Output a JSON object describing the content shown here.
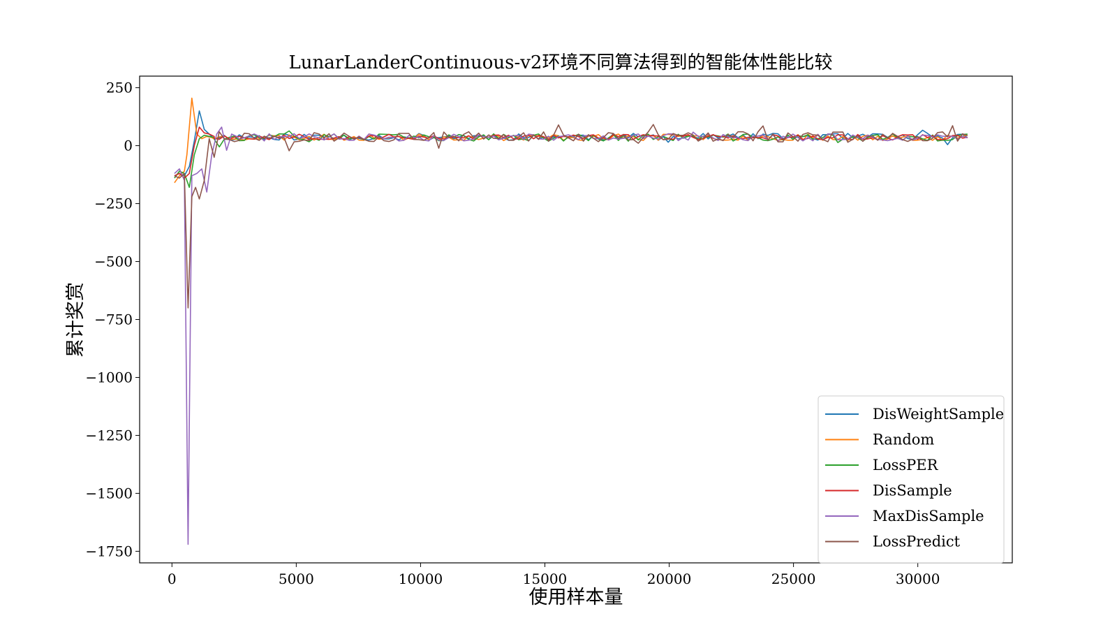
{
  "chart_data": {
    "type": "line",
    "title": "LunarLanderContinuous-v2环境不同算法得到的智能体性能比较",
    "xlabel": "使用样本量",
    "ylabel": "累计奖赏",
    "xlim": [
      -1300,
      33800
    ],
    "ylim": [
      -1800,
      300
    ],
    "xticks": [
      0,
      5000,
      10000,
      15000,
      20000,
      25000,
      30000
    ],
    "xtick_labels": [
      "0",
      "5000",
      "10000",
      "15000",
      "20000",
      "25000",
      "30000"
    ],
    "yticks": [
      250,
      0,
      -250,
      -500,
      -750,
      -1000,
      -1250,
      -1500,
      -1750
    ],
    "ytick_labels": [
      "250",
      "0",
      "−250",
      "−500",
      "−750",
      "−1000",
      "−1250",
      "−1500",
      "−1750"
    ],
    "grid": false,
    "legend_position": "lower-right",
    "x_range": [
      100,
      32000
    ],
    "samples": 160,
    "series": [
      {
        "name": "DisWeightSample",
        "color": "#1f77b4",
        "head": [
          [
            100,
            -130
          ],
          [
            300,
            -120
          ],
          [
            500,
            -130
          ],
          [
            700,
            -90
          ],
          [
            900,
            20
          ],
          [
            1100,
            150
          ],
          [
            1300,
            70
          ],
          [
            1500,
            50
          ],
          [
            1700,
            30
          ]
        ],
        "baseline": 38,
        "noise": 15,
        "seed": 11
      },
      {
        "name": "Random",
        "color": "#ff7f0e",
        "head": [
          [
            100,
            -160
          ],
          [
            300,
            -130
          ],
          [
            500,
            -110
          ],
          [
            600,
            -40
          ],
          [
            800,
            205
          ],
          [
            1000,
            50
          ],
          [
            1200,
            30
          ],
          [
            1400,
            40
          ],
          [
            1600,
            35
          ]
        ],
        "baseline": 36,
        "noise": 14,
        "seed": 23
      },
      {
        "name": "LossPER",
        "color": "#2ca02c",
        "head": [
          [
            100,
            -140
          ],
          [
            300,
            -110
          ],
          [
            500,
            -120
          ],
          [
            700,
            -180
          ],
          [
            900,
            -40
          ],
          [
            1100,
            30
          ],
          [
            1300,
            45
          ],
          [
            1500,
            40
          ],
          [
            1700,
            35
          ]
        ],
        "baseline": 35,
        "noise": 16,
        "seed": 37
      },
      {
        "name": "DisSample",
        "color": "#d62728",
        "head": [
          [
            100,
            -130
          ],
          [
            300,
            -120
          ],
          [
            500,
            -140
          ],
          [
            700,
            -120
          ],
          [
            900,
            0
          ],
          [
            1100,
            80
          ],
          [
            1300,
            55
          ],
          [
            1500,
            50
          ],
          [
            1700,
            40
          ]
        ],
        "baseline": 37,
        "noise": 12,
        "seed": 53
      },
      {
        "name": "MaxDisSample",
        "color": "#9467bd",
        "head": [
          [
            100,
            -120
          ],
          [
            300,
            -100
          ],
          [
            500,
            -150
          ],
          [
            650,
            -1720
          ],
          [
            800,
            -130
          ],
          [
            1000,
            -120
          ],
          [
            1200,
            -100
          ],
          [
            1400,
            -200
          ],
          [
            1600,
            -40
          ],
          [
            1800,
            50
          ],
          [
            2000,
            80
          ],
          [
            2200,
            -20
          ],
          [
            2400,
            50
          ],
          [
            2600,
            40
          ]
        ],
        "baseline": 36,
        "noise": 16,
        "seed": 71
      },
      {
        "name": "LossPredict",
        "color": "#8c564b",
        "head": [
          [
            100,
            -130
          ],
          [
            300,
            -140
          ],
          [
            500,
            -120
          ],
          [
            650,
            -700
          ],
          [
            800,
            -220
          ],
          [
            950,
            -180
          ],
          [
            1100,
            -230
          ],
          [
            1300,
            -150
          ],
          [
            1500,
            30
          ],
          [
            1700,
            -50
          ],
          [
            1900,
            60
          ],
          [
            2100,
            30
          ]
        ],
        "baseline": 38,
        "noise": 22,
        "seed": 97
      }
    ]
  }
}
